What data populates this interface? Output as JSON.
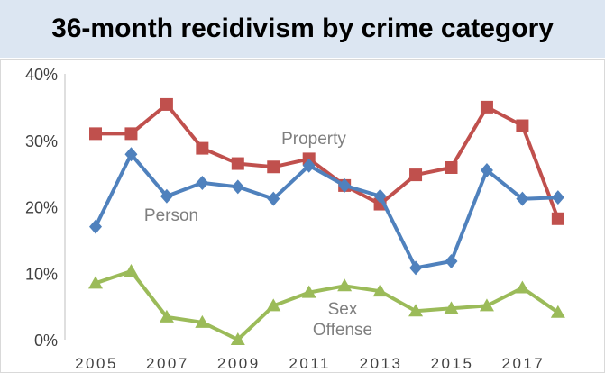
{
  "chart_data": {
    "type": "line",
    "title": "36-month recidivism by crime category",
    "xlabel": "",
    "ylabel": "",
    "x": [
      2005,
      2006,
      2007,
      2008,
      2009,
      2010,
      2011,
      2012,
      2013,
      2014,
      2015,
      2016,
      2017,
      2018
    ],
    "x_tick_labels": [
      "2005",
      "2007",
      "2009",
      "2011",
      "2013",
      "2015",
      "2017"
    ],
    "ylim": [
      0,
      40
    ],
    "y_tick_labels": [
      "0%",
      "10%",
      "20%",
      "30%",
      "40%"
    ],
    "grid": false,
    "legend": "none",
    "series": [
      {
        "name": "Property",
        "label_lines": [
          "Property"
        ],
        "color": "#c0504d",
        "marker": "square",
        "values": [
          31,
          31,
          35.4,
          28.8,
          26.5,
          26,
          27.2,
          23.2,
          20.4,
          24.8,
          25.9,
          35,
          32.2,
          18.2
        ]
      },
      {
        "name": "Person",
        "label_lines": [
          "Person"
        ],
        "color": "#4f81bd",
        "marker": "diamond",
        "values": [
          17,
          27.9,
          21.6,
          23.6,
          23,
          21.2,
          26.2,
          23.2,
          21.6,
          10.8,
          11.8,
          25.5,
          21.2,
          21.4
        ]
      },
      {
        "name": "Sex Offense",
        "label_lines": [
          "Sex",
          "Offense"
        ],
        "color": "#9bbb59",
        "marker": "triangle",
        "values": [
          8.5,
          10.3,
          3.4,
          2.6,
          0,
          5.1,
          7.1,
          8.1,
          7.3,
          4.3,
          4.7,
          5.1,
          7.8,
          4.1
        ]
      }
    ]
  }
}
